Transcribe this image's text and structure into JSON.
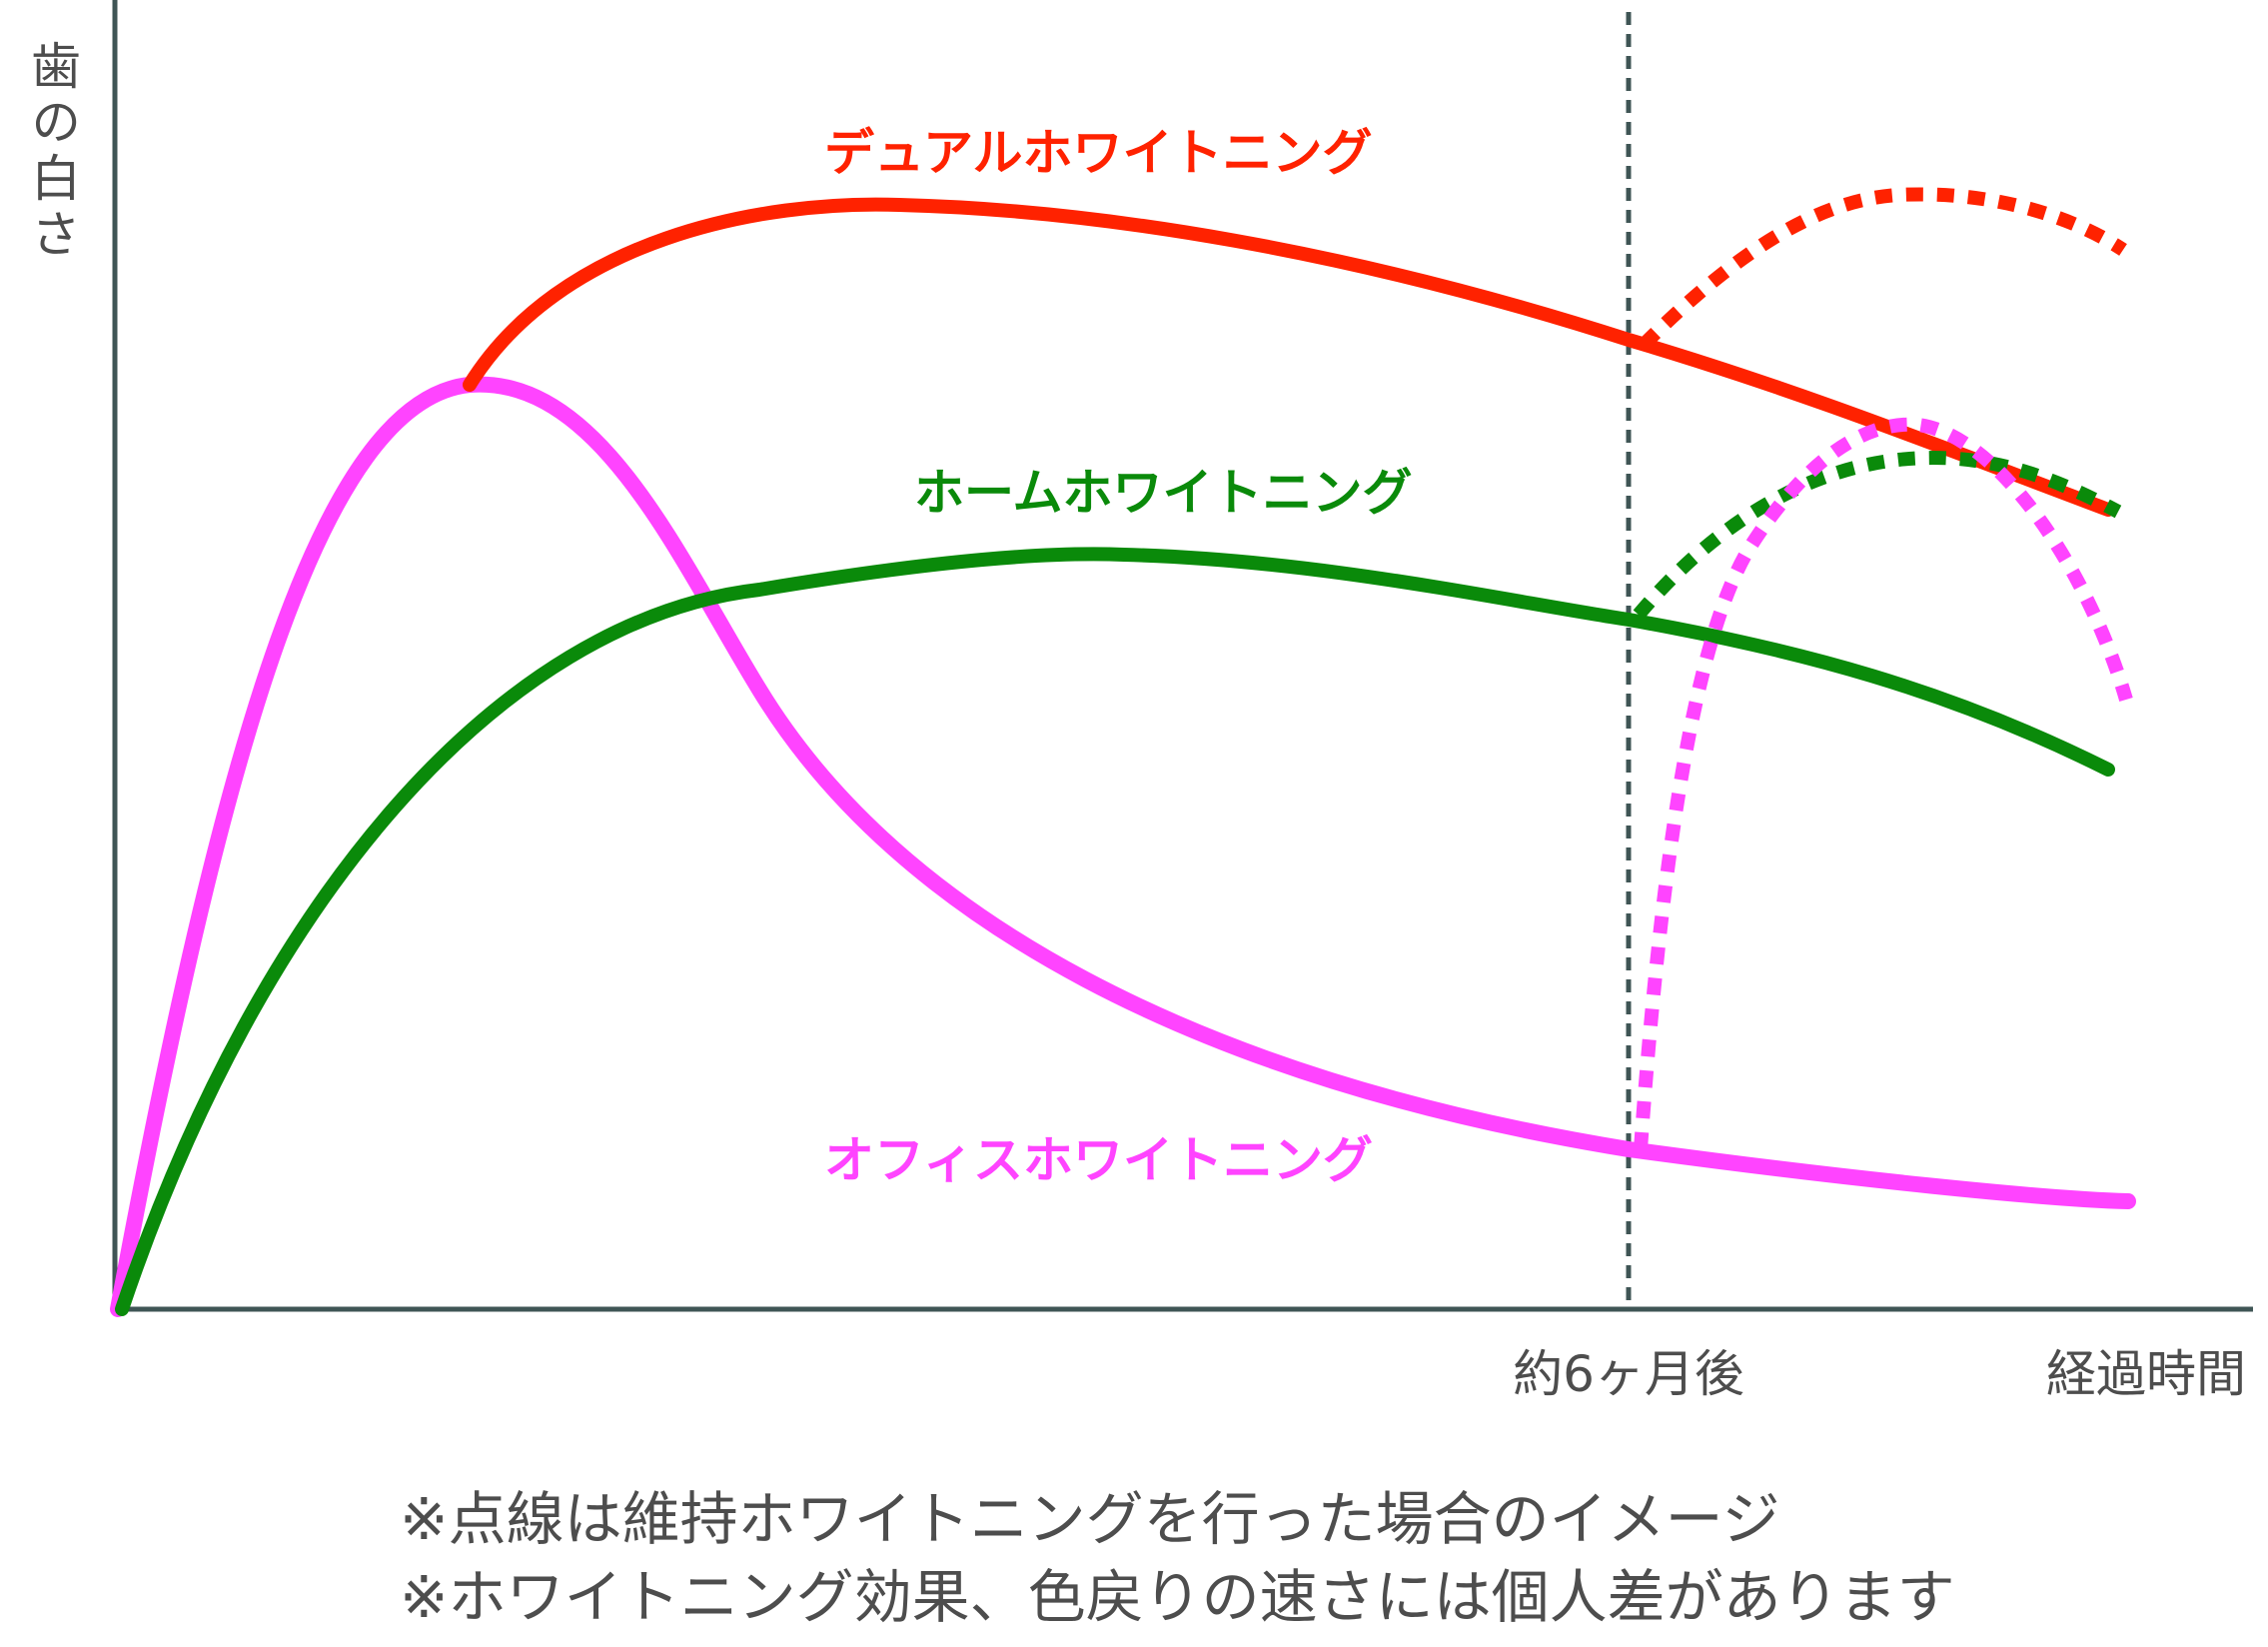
{
  "chart_data": {
    "type": "line",
    "title": "",
    "ylabel": "歯の白さ",
    "xlabel": "経過時間",
    "marker_label": "約6ヶ月後",
    "grid": false,
    "series": [
      {
        "name": "デュアルホワイトニング",
        "color": "#ff2200"
      },
      {
        "name": "ホームホワイトニング",
        "color": "#0a8a0a"
      },
      {
        "name": "オフィスホワイトニング",
        "color": "#ff44ff"
      }
    ],
    "notes": [
      "※点線は維持ホワイトニングを行った場合のイメージ",
      "※ホワイトニング効果、色戻りの速さには個人差があります"
    ]
  }
}
